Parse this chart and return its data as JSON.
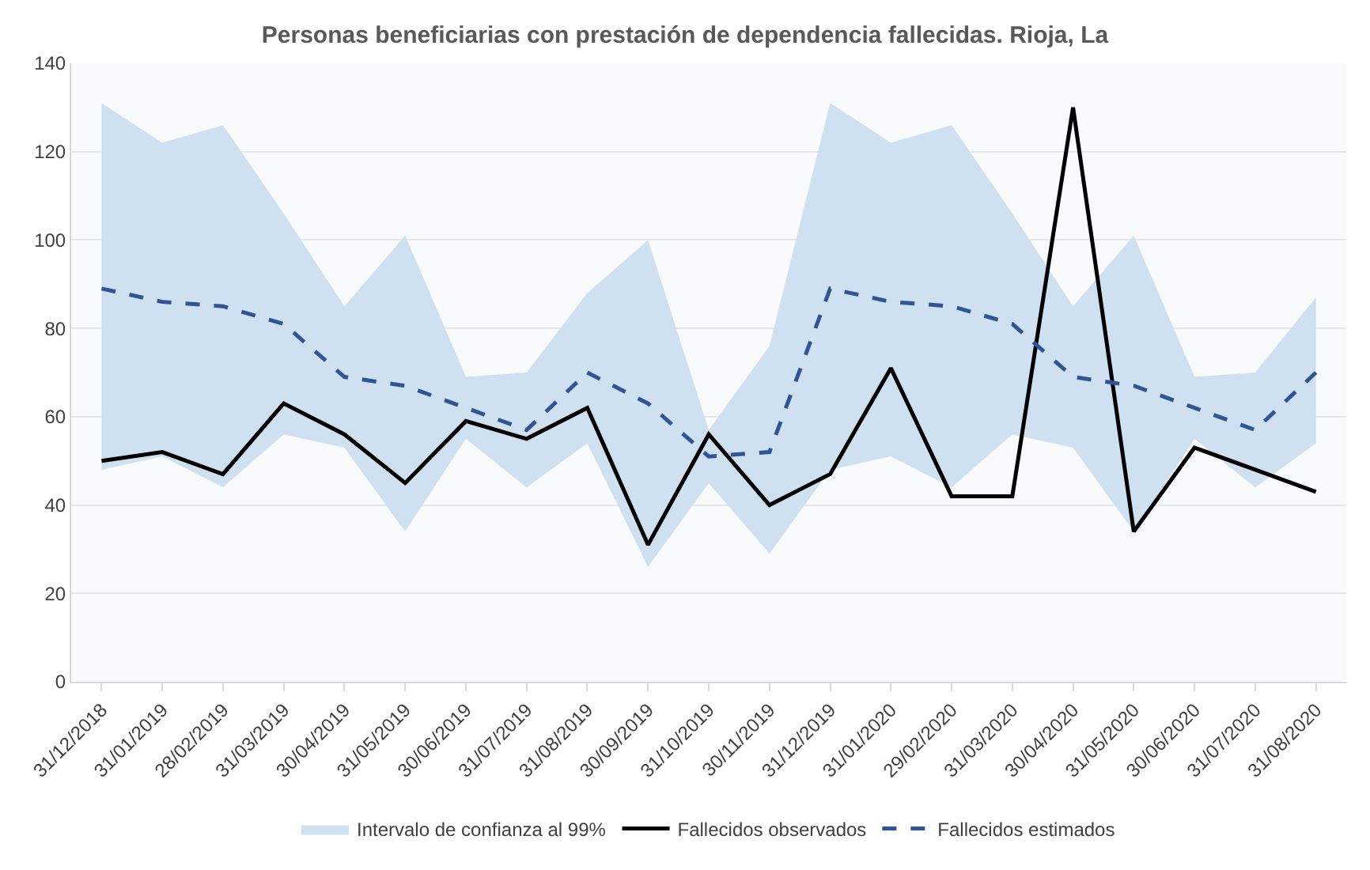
{
  "chart_data": {
    "type": "line",
    "title": "Personas beneficiarias con prestación de dependencia fallecidas. Rioja, La",
    "categories": [
      "31/12/2018",
      "31/01/2019",
      "28/02/2019",
      "31/03/2019",
      "30/04/2019",
      "31/05/2019",
      "30/06/2019",
      "31/07/2019",
      "31/08/2019",
      "30/09/2019",
      "31/10/2019",
      "30/11/2019",
      "31/12/2019",
      "31/01/2020",
      "29/02/2020",
      "31/03/2020",
      "30/04/2020",
      "31/05/2020",
      "30/06/2020",
      "31/07/2020",
      "31/08/2020"
    ],
    "series": [
      {
        "name": "Intervalo de confianza al 99%",
        "type": "area",
        "color": "#cfe0f0",
        "values": [
          null,
          null,
          null,
          null,
          null,
          null,
          null,
          null,
          null,
          null,
          null,
          null,
          null,
          null,
          null,
          null,
          null,
          null,
          null,
          null,
          null
        ],
        "lower": [
          48,
          51,
          44,
          56,
          53,
          34,
          55,
          44,
          54,
          26,
          45,
          29,
          48,
          51,
          44,
          56,
          53,
          34,
          55,
          44,
          54
        ],
        "upper": [
          131,
          122,
          126,
          106,
          85,
          101,
          69,
          70,
          88,
          100,
          57,
          76,
          131,
          122,
          126,
          106,
          85,
          101,
          69,
          70,
          87
        ]
      },
      {
        "name": "Fallecidos observados",
        "color": "#000000",
        "line_style": "solid",
        "values": [
          50,
          52,
          47,
          63,
          56,
          45,
          59,
          55,
          62,
          31,
          56,
          40,
          47,
          71,
          42,
          42,
          130,
          34,
          53,
          48,
          43
        ]
      },
      {
        "name": "Fallecidos estimados",
        "color": "#2f5597",
        "line_style": "dashed",
        "values": [
          89,
          86,
          85,
          81,
          69,
          67,
          62,
          57,
          70,
          63,
          51,
          52,
          89,
          86,
          85,
          81,
          69,
          67,
          62,
          57,
          70
        ]
      }
    ],
    "ylim": [
      0,
      140
    ],
    "yticks": [
      0,
      20,
      40,
      60,
      80,
      100,
      120,
      140
    ],
    "grid": "y",
    "legend": "bottom",
    "marker": "none"
  }
}
